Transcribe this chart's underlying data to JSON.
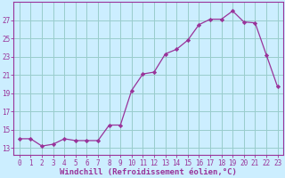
{
  "x": [
    0,
    1,
    2,
    3,
    4,
    5,
    6,
    7,
    8,
    9,
    10,
    11,
    12,
    13,
    14,
    15,
    16,
    17,
    18,
    19,
    20,
    21,
    22,
    23
  ],
  "y": [
    14.0,
    14.0,
    13.2,
    13.4,
    14.0,
    13.8,
    13.8,
    13.8,
    15.5,
    15.5,
    19.3,
    21.1,
    21.3,
    23.3,
    23.8,
    24.8,
    26.5,
    27.1,
    27.1,
    28.0,
    26.8,
    26.7,
    23.2,
    19.7
  ],
  "line_color": "#993399",
  "marker_color": "#993399",
  "bg_color": "#cceeff",
  "grid_color": "#99cccc",
  "xlabel": "Windchill (Refroidissement éolien,°C)",
  "ylabel_ticks": [
    13,
    15,
    17,
    19,
    21,
    23,
    25,
    27
  ],
  "xlim": [
    -0.5,
    23.5
  ],
  "ylim": [
    12.2,
    29.0
  ],
  "xticks": [
    0,
    1,
    2,
    3,
    4,
    5,
    6,
    7,
    8,
    9,
    10,
    11,
    12,
    13,
    14,
    15,
    16,
    17,
    18,
    19,
    20,
    21,
    22,
    23
  ],
  "tick_fontsize": 5.5,
  "xlabel_fontsize": 6.5
}
